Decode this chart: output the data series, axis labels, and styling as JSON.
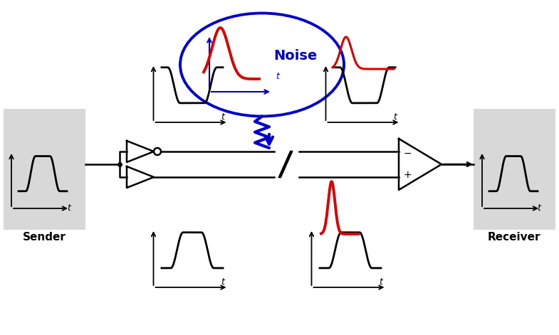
{
  "bg_color": "#ffffff",
  "gray_box_color": "#d8d8d8",
  "black": "#000000",
  "red": "#dd0000",
  "blue": "#0000cc",
  "sender_label": "Sender",
  "receiver_label": "Receiver",
  "noise_label": "Noise",
  "fig_w": 7.85,
  "fig_h": 4.71,
  "dpi": 100
}
